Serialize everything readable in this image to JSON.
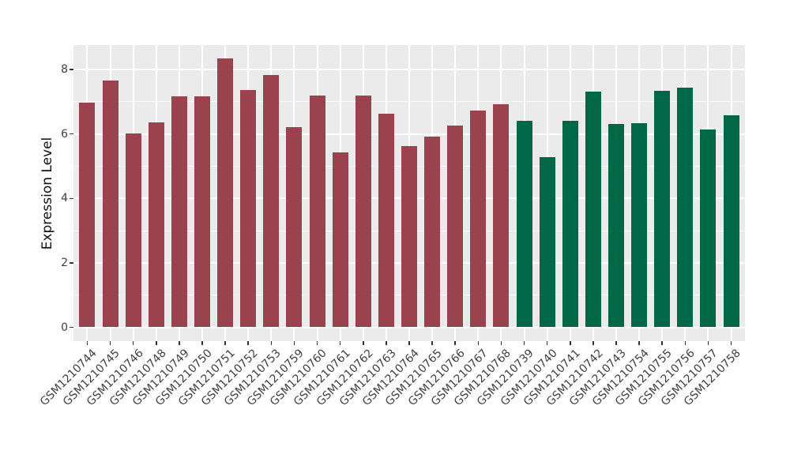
{
  "chart_data": {
    "type": "bar",
    "title": "",
    "xlabel": "",
    "ylabel": "Expression Level",
    "ylim": [
      0,
      8.77
    ],
    "yticks": [
      0,
      2,
      4,
      6,
      8
    ],
    "ytick_labels": [
      "0",
      "2",
      "4",
      "6",
      "8"
    ],
    "minor_yticks": [
      1,
      3,
      5,
      7
    ],
    "grid": "white major and minor gridlines on gray panel",
    "legend_position": "none",
    "panel_bg_color": "#EBEBEB",
    "grid_color": "#FFFFFF",
    "tick_text_color": "#404040",
    "groups": {
      "red": {
        "color": "#9A424E"
      },
      "green": {
        "color": "#006847"
      }
    },
    "bars": [
      {
        "label": "GSM1210744",
        "value": 6.98,
        "group": "red"
      },
      {
        "label": "GSM1210745",
        "value": 7.67,
        "group": "red"
      },
      {
        "label": "GSM1210746",
        "value": 6.02,
        "group": "red"
      },
      {
        "label": "GSM1210748",
        "value": 6.35,
        "group": "red"
      },
      {
        "label": "GSM1210749",
        "value": 7.17,
        "group": "red"
      },
      {
        "label": "GSM1210750",
        "value": 7.17,
        "group": "red"
      },
      {
        "label": "GSM1210751",
        "value": 8.35,
        "group": "red"
      },
      {
        "label": "GSM1210752",
        "value": 7.36,
        "group": "red"
      },
      {
        "label": "GSM1210753",
        "value": 7.83,
        "group": "red"
      },
      {
        "label": "GSM1210759",
        "value": 6.21,
        "group": "red"
      },
      {
        "label": "GSM1210760",
        "value": 7.19,
        "group": "red"
      },
      {
        "label": "GSM1210761",
        "value": 5.42,
        "group": "red"
      },
      {
        "label": "GSM1210762",
        "value": 7.19,
        "group": "red"
      },
      {
        "label": "GSM1210763",
        "value": 6.62,
        "group": "red"
      },
      {
        "label": "GSM1210764",
        "value": 5.63,
        "group": "red"
      },
      {
        "label": "GSM1210765",
        "value": 5.92,
        "group": "red"
      },
      {
        "label": "GSM1210766",
        "value": 6.27,
        "group": "red"
      },
      {
        "label": "GSM1210767",
        "value": 6.73,
        "group": "red"
      },
      {
        "label": "GSM1210768",
        "value": 6.93,
        "group": "red"
      },
      {
        "label": "GSM1210739",
        "value": 6.42,
        "group": "green"
      },
      {
        "label": "GSM1210740",
        "value": 5.28,
        "group": "green"
      },
      {
        "label": "GSM1210741",
        "value": 6.4,
        "group": "green"
      },
      {
        "label": "GSM1210742",
        "value": 7.32,
        "group": "green"
      },
      {
        "label": "GSM1210743",
        "value": 6.3,
        "group": "green"
      },
      {
        "label": "GSM1210754",
        "value": 6.33,
        "group": "green"
      },
      {
        "label": "GSM1210755",
        "value": 7.35,
        "group": "green"
      },
      {
        "label": "GSM1210756",
        "value": 7.44,
        "group": "green"
      },
      {
        "label": "GSM1210757",
        "value": 6.15,
        "group": "green"
      },
      {
        "label": "GSM1210758",
        "value": 6.58,
        "group": "green"
      }
    ]
  }
}
